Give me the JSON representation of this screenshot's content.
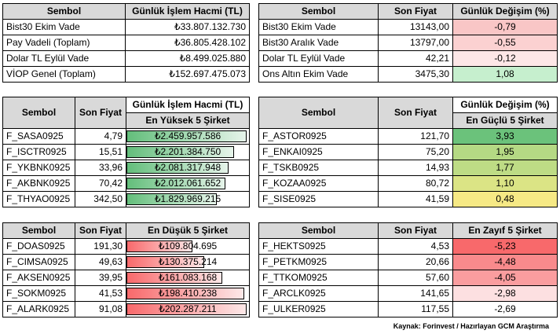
{
  "top_left": {
    "headers": [
      "Sembol",
      "Günlük İşlem Hacmi (TL)"
    ],
    "rows": [
      {
        "sembol": "Bist30 Ekim Vade",
        "value": "₺33.807.132.730"
      },
      {
        "sembol": "Pay Vadeli (Toplam)",
        "value": "₺36.805.428.102"
      },
      {
        "sembol": "Dolar TL Eylül Vade",
        "value": "₺8.499.025.880"
      },
      {
        "sembol": "VİOP Genel (Toplam)",
        "value": "₺152.697.475.073"
      }
    ]
  },
  "top_right": {
    "headers": [
      "Sembol",
      "Son Fiyat",
      "Günlük Değişim (%)"
    ],
    "rows": [
      {
        "sembol": "Bist30 Ekim Vade",
        "price": "13143,00",
        "change": "-0,79",
        "color": "#f9c6c6"
      },
      {
        "sembol": "Bist30 Aralık Vade",
        "price": "13797,00",
        "change": "-0,55",
        "color": "#fbd1d1"
      },
      {
        "sembol": "Dolar TL Eylül Vade",
        "price": "42,21",
        "change": "-0,12",
        "color": "#fde7e7"
      },
      {
        "sembol": "Ons Altın Ekim Vade",
        "price": "3475,30",
        "change": "1,08",
        "color": "#c6efce"
      }
    ]
  },
  "volume_top5": {
    "headers": [
      "Sembol",
      "Son Fiyat",
      "Günlük İşlem Hacmi (TL)"
    ],
    "subheader": "En Yüksek 5 Şirket",
    "rows": [
      {
        "sembol": "F_SASA0925",
        "price": "4,79",
        "value": "₺2.459.957.586",
        "level": 1.0
      },
      {
        "sembol": "F_ISCTR0925",
        "price": "15,51",
        "value": "₺2.201.384.750",
        "level": 0.895
      },
      {
        "sembol": "F_YKBNK0925",
        "price": "33,96",
        "value": "₺2.081.317.948",
        "level": 0.846
      },
      {
        "sembol": "F_AKBNK0925",
        "price": "70,42",
        "value": "₺2.012.061.652",
        "level": 0.818
      },
      {
        "sembol": "F_THYAO0925",
        "price": "342,50",
        "value": "₺1.829.969.215",
        "level": 0.744
      }
    ]
  },
  "strongest5": {
    "headers": [
      "Sembol",
      "Son Fiyat",
      "Günlük Değişim (%)"
    ],
    "subheader": "En Güçlü 5 Şirket",
    "rows": [
      {
        "sembol": "F_ASTOR0925",
        "price": "121,70",
        "change": "3,93",
        "color": "#6bc27b"
      },
      {
        "sembol": "F_ENKAI0925",
        "price": "75,20",
        "change": "1,95",
        "color": "#b5d984"
      },
      {
        "sembol": "F_TSKB0925",
        "price": "14,93",
        "change": "1,77",
        "color": "#bedc85"
      },
      {
        "sembol": "F_KOZAA0925",
        "price": "80,72",
        "change": "1,10",
        "color": "#dbe485"
      },
      {
        "sembol": "F_SISE0925",
        "price": "41,59",
        "change": "0,48",
        "color": "#f6e985"
      }
    ]
  },
  "volume_bottom5": {
    "headers": [
      "Sembol",
      "Son Fiyat",
      "En Düşük 5 Şirket"
    ],
    "rows": [
      {
        "sembol": "F_DOAS0925",
        "price": "191,30",
        "value": "₺109.804.695",
        "level": 0.543
      },
      {
        "sembol": "F_CIMSA0925",
        "price": "49,63",
        "value": "₺130.375.214",
        "level": 0.644
      },
      {
        "sembol": "F_AKSEN0925",
        "price": "39,95",
        "value": "₺161.083.168",
        "level": 0.796
      },
      {
        "sembol": "F_SOKM0925",
        "price": "41,53",
        "value": "₺198.410.238",
        "level": 0.981
      },
      {
        "sembol": "F_ALARK0925",
        "price": "91,08",
        "value": "₺202.287.211",
        "level": 1.0
      }
    ]
  },
  "weakest5": {
    "headers": [
      "Sembol",
      "Son Fiyat",
      "En Zayıf 5 Şirket"
    ],
    "rows": [
      {
        "sembol": "F_HEKTS0925",
        "price": "4,53",
        "change": "-5,23",
        "color": "#f8696b"
      },
      {
        "sembol": "F_PETKM0925",
        "price": "20,66",
        "change": "-4,48",
        "color": "#f98a8c"
      },
      {
        "sembol": "F_TTKOM0925",
        "price": "57,60",
        "change": "-4,05",
        "color": "#fa9d9f"
      },
      {
        "sembol": "F_ARCLK0925",
        "price": "141,65",
        "change": "-2,98",
        "color": "#fde0e1"
      },
      {
        "sembol": "F_ULKER0925",
        "price": "117,55",
        "change": "-2,69",
        "color": "#ffffff"
      }
    ]
  },
  "footer": "Kaynak: Forinvest / Hazırlayan GCM Araştırma"
}
